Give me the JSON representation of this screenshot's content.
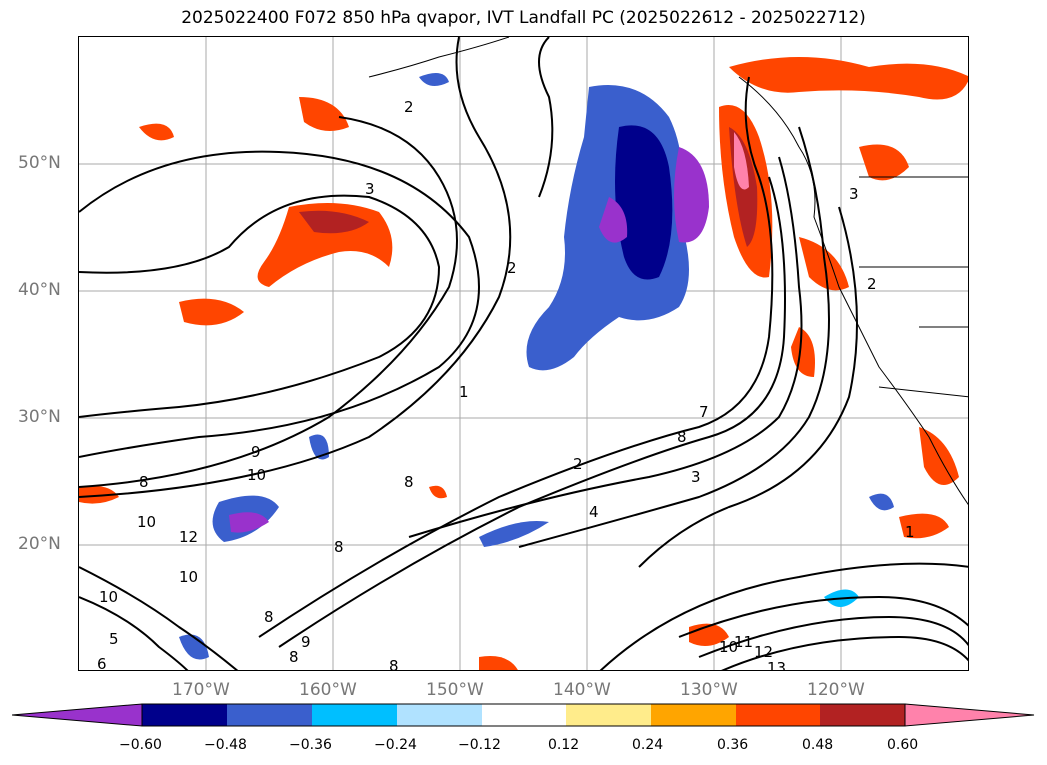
{
  "title": "2025022400 F072 850 hPa qvapor, IVT Landfall PC (2025022612 - 2025022712)",
  "axes": {
    "lat_labels": [
      "50°N",
      "40°N",
      "30°N",
      "20°N"
    ],
    "lon_labels": [
      "170°W",
      "160°W",
      "150°W",
      "140°W",
      "130°W",
      "120°W"
    ]
  },
  "colorbar": {
    "ticks": [
      "−0.60",
      "−0.48",
      "−0.36",
      "−0.24",
      "−0.12",
      "0.12",
      "0.24",
      "0.36",
      "0.48",
      "0.60"
    ],
    "colors": [
      "#9932cc",
      "#00008b",
      "#3a5fcd",
      "#00bfff",
      "#b0e2ff",
      "#ffffff",
      "#ffec8b",
      "#ffa500",
      "#ff4500",
      "#b22222",
      "#ff82ab"
    ]
  },
  "contour_labels": [
    "2",
    "3",
    "2",
    "1",
    "2",
    "4",
    "3",
    "7",
    "8",
    "8",
    "10",
    "9",
    "10",
    "10",
    "12",
    "10",
    "8",
    "8",
    "9",
    "8",
    "6",
    "5",
    "8",
    "10",
    "8",
    "12",
    "13",
    "11",
    "1",
    "2",
    "3"
  ]
}
